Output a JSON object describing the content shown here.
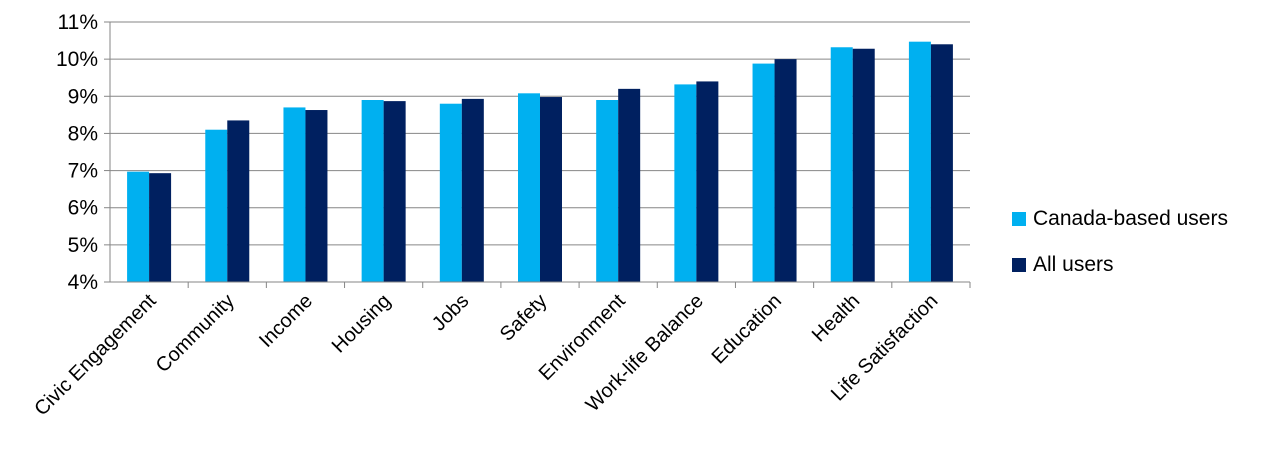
{
  "chart_data": {
    "type": "bar",
    "title": "",
    "xlabel": "",
    "ylabel": "",
    "ylim": [
      4,
      11
    ],
    "yticks": [
      "4%",
      "5%",
      "6%",
      "7%",
      "8%",
      "9%",
      "10%",
      "11%"
    ],
    "grid": true,
    "legend_position": "right",
    "categories": [
      "Civic Engagement",
      "Community",
      "Income",
      "Housing",
      "Jobs",
      "Safety",
      "Environment",
      "Work-life Balance",
      "Education",
      "Health",
      "Life Satisfaction"
    ],
    "series": [
      {
        "name": "Canada-based users",
        "color": "#00b0f0",
        "values": [
          6.97,
          8.1,
          8.7,
          8.9,
          8.8,
          9.08,
          8.9,
          9.32,
          9.88,
          10.32,
          10.47
        ]
      },
      {
        "name": "All users",
        "color": "#002060",
        "values": [
          6.93,
          8.35,
          8.63,
          8.87,
          8.93,
          8.98,
          9.2,
          9.4,
          10.0,
          10.28,
          10.4
        ]
      }
    ]
  }
}
